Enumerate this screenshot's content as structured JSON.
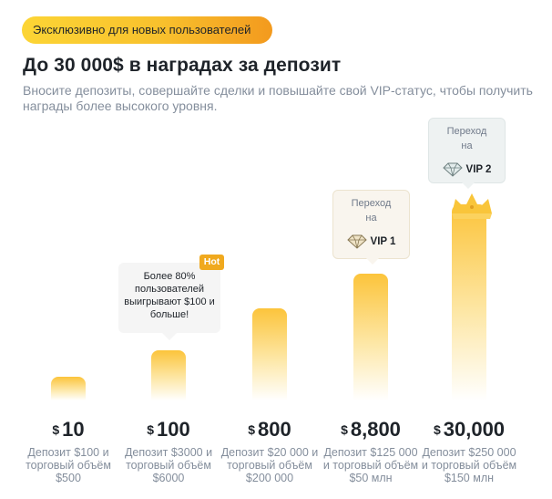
{
  "header": {
    "badge": "Эксклюзивно для новых пользователей",
    "title": "До 30 000$ в наградах за депозит",
    "subtitle": "Вносите депозиты, совершайте сделки и повышайте свой VIP-статус, чтобы получить награды более высокого уровня."
  },
  "tiers": [
    {
      "currency": "$",
      "amount": "10",
      "desc": "Депозит $100 и торговый объём $500"
    },
    {
      "currency": "$",
      "amount": "100",
      "desc": "Депозит $3000 и торговый объём $6000"
    },
    {
      "currency": "$",
      "amount": "800",
      "desc": "Депозит $20 000 и торговый объём $200 000"
    },
    {
      "currency": "$",
      "amount": "8,800",
      "desc": "Депозит $125 000 и торговый объём $50 млн"
    },
    {
      "currency": "$",
      "amount": "30,000",
      "desc": "Депозит $250 000 и торговый объём $150 млн"
    }
  ],
  "hot_tooltip": {
    "badge": "Hot",
    "text": "Более 80% пользователей выигрывают $100 и больше!"
  },
  "vip_tooltips": [
    {
      "line1": "Переход",
      "line2": "на",
      "label": "VIP 1",
      "icon": "vip1-diamond-icon"
    },
    {
      "line1": "Переход",
      "line2": "на",
      "label": "VIP 2",
      "icon": "vip2-diamond-icon"
    }
  ],
  "colors": {
    "badge_gradient_start": "#fcd535",
    "badge_gradient_end": "#f39a1e",
    "bar_top": "#fcc43b",
    "hot_badge": "#f0a91e",
    "muted_text": "#848e9c"
  }
}
